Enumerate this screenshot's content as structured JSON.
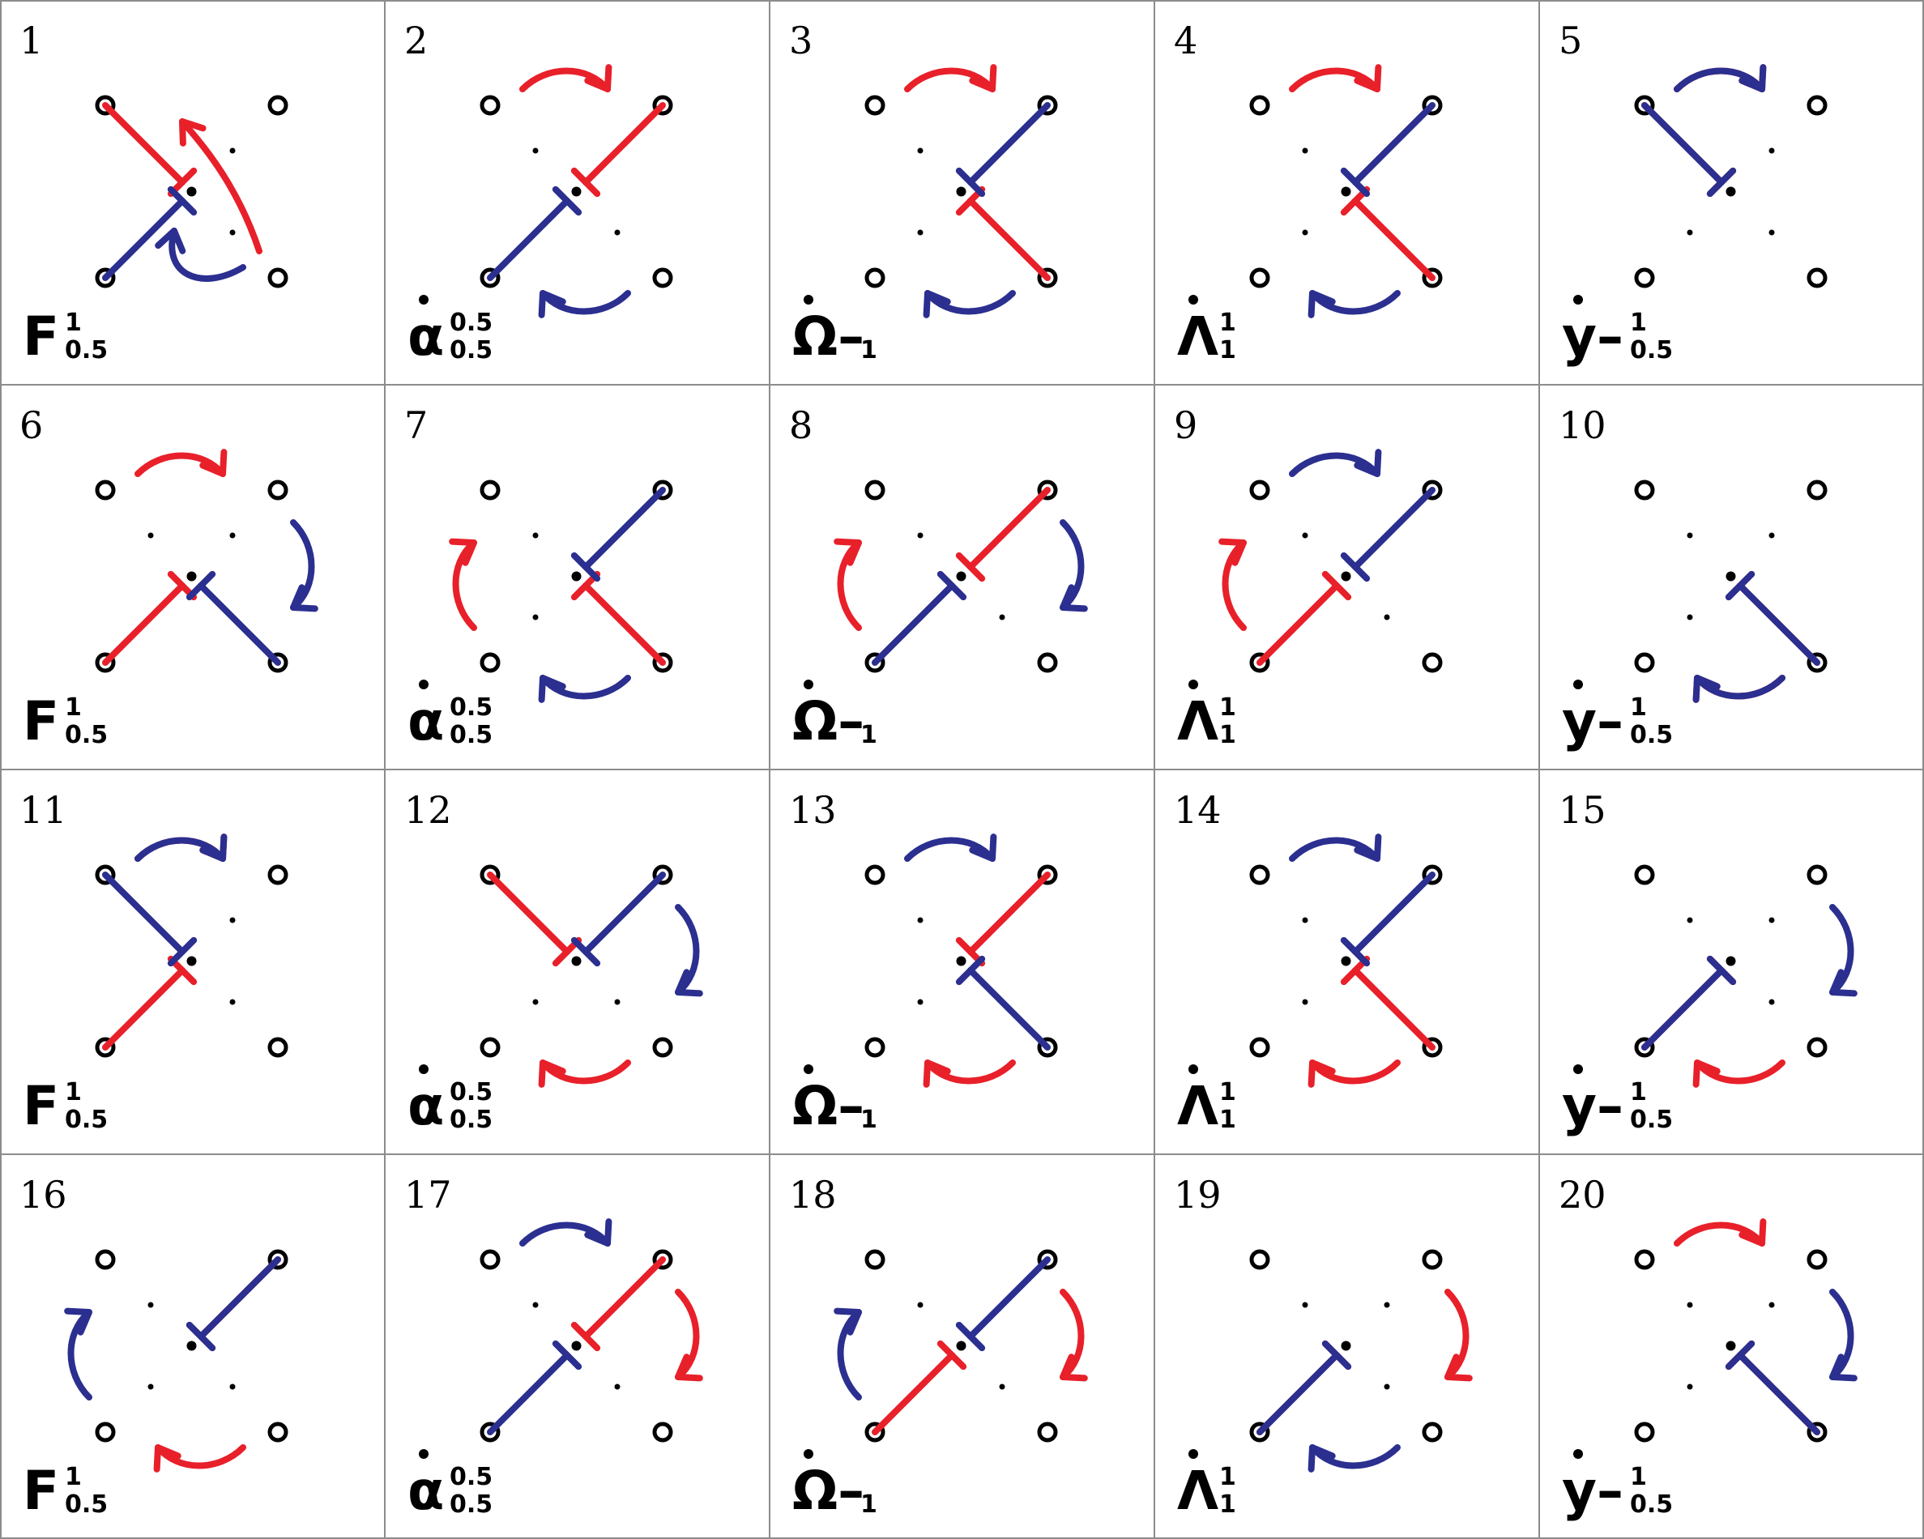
{
  "grid": {
    "rows": 4,
    "cols": 5
  },
  "colors": {
    "red": "#e8202a",
    "blue": "#2b2f8f",
    "line": "#8c8c8c",
    "mark": "#000000"
  },
  "symbols": [
    {
      "main": "F",
      "sup": "1",
      "sub": "0.5",
      "dotted": false
    },
    {
      "main": "α",
      "sup": "0.5",
      "sub": "0.5",
      "dotted": true
    },
    {
      "main": "Ω–",
      "sup": "",
      "sub": "1",
      "dotted": true
    },
    {
      "main": "Λ",
      "sup": "1",
      "sub": "1",
      "dotted": true
    },
    {
      "main": "y–",
      "sup": "1",
      "sub": "0.5",
      "dotted": true
    }
  ],
  "panels": [
    {
      "number": "1",
      "symbol_index": 0,
      "red": {
        "tee": "A",
        "arrow": "up-left"
      },
      "blue": {
        "tee": "C",
        "arrow": "down-right"
      }
    },
    {
      "number": "2",
      "symbol_index": 1,
      "red": {
        "tee": "B",
        "arrow": "top"
      },
      "blue": {
        "tee": "C",
        "arrow": "bottom"
      }
    },
    {
      "number": "3",
      "symbol_index": 2,
      "red": {
        "tee": "D",
        "arrow": "top"
      },
      "blue": {
        "tee": "B",
        "arrow": "bottom"
      }
    },
    {
      "number": "4",
      "symbol_index": 3,
      "red": {
        "tee": "D",
        "arrow": "top"
      },
      "blue": {
        "tee": "B",
        "arrow": "bottom"
      }
    },
    {
      "number": "5",
      "symbol_index": 4,
      "red": {
        "tee": "A",
        "arrow": "top"
      },
      "blue": {
        "tee": "A",
        "arrow": "top"
      }
    },
    {
      "number": "6",
      "symbol_index": 0,
      "red": {
        "tee": "C",
        "arrow": "top"
      },
      "blue": {
        "tee": "D",
        "arrow": "right"
      }
    },
    {
      "number": "7",
      "symbol_index": 1,
      "red": {
        "tee": "D",
        "arrow": "left"
      },
      "blue": {
        "tee": "B",
        "arrow": "bottom"
      }
    },
    {
      "number": "8",
      "symbol_index": 2,
      "red": {
        "tee": "B",
        "arrow": "left"
      },
      "blue": {
        "tee": "C",
        "arrow": "right"
      }
    },
    {
      "number": "9",
      "symbol_index": 3,
      "red": {
        "tee": "C",
        "arrow": "left"
      },
      "blue": {
        "tee": "B",
        "arrow": "top"
      }
    },
    {
      "number": "10",
      "symbol_index": 4,
      "red": {
        "tee": "D",
        "arrow": "bottom"
      },
      "blue": {
        "tee": "D",
        "arrow": "bottom"
      }
    },
    {
      "number": "11",
      "symbol_index": 0,
      "red": {
        "tee": "C",
        "arrow": "top"
      },
      "blue": {
        "tee": "A",
        "arrow": "top"
      }
    },
    {
      "number": "12",
      "symbol_index": 1,
      "red": {
        "tee": "A",
        "arrow": "bottom"
      },
      "blue": {
        "tee": "B",
        "arrow": "right"
      }
    },
    {
      "number": "13",
      "symbol_index": 2,
      "red": {
        "tee": "B",
        "arrow": "bottom"
      },
      "blue": {
        "tee": "D",
        "arrow": "top"
      }
    },
    {
      "number": "14",
      "symbol_index": 3,
      "red": {
        "tee": "D",
        "arrow": "bottom"
      },
      "blue": {
        "tee": "B",
        "arrow": "top"
      }
    },
    {
      "number": "15",
      "symbol_index": 4,
      "red": {
        "tee": "C",
        "arrow": "bottom"
      },
      "blue": {
        "tee": "C",
        "arrow": "right"
      }
    },
    {
      "number": "16",
      "symbol_index": 0,
      "red": {
        "tee": "B",
        "arrow": "bottom"
      },
      "blue": {
        "tee": "B",
        "arrow": "left"
      }
    },
    {
      "number": "17",
      "symbol_index": 1,
      "red": {
        "tee": "B",
        "arrow": "right"
      },
      "blue": {
        "tee": "C",
        "arrow": "top"
      }
    },
    {
      "number": "18",
      "symbol_index": 2,
      "red": {
        "tee": "C",
        "arrow": "right"
      },
      "blue": {
        "tee": "B",
        "arrow": "left"
      }
    },
    {
      "number": "19",
      "symbol_index": 3,
      "red": {
        "tee": "C",
        "arrow": "right"
      },
      "blue": {
        "tee": "C",
        "arrow": "bottom"
      }
    },
    {
      "number": "20",
      "symbol_index": 4,
      "red": {
        "tee": "D",
        "arrow": "top"
      },
      "blue": {
        "tee": "D",
        "arrow": "right"
      }
    }
  ]
}
